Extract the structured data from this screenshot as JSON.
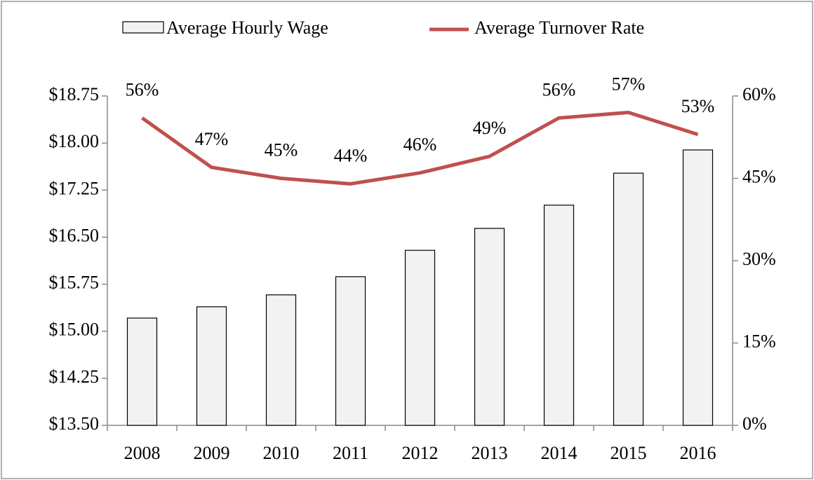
{
  "chart_data": {
    "type": "combo",
    "categories": [
      "2008",
      "2009",
      "2010",
      "2011",
      "2012",
      "2013",
      "2014",
      "2015",
      "2016"
    ],
    "series": [
      {
        "name": "Average Hourly Wage",
        "type": "bar",
        "color": "#f2f2f2",
        "values": [
          15.21,
          15.39,
          15.58,
          15.87,
          16.29,
          16.64,
          17.01,
          17.52,
          17.89
        ]
      },
      {
        "name": "Average Turnover Rate",
        "type": "line",
        "axis": "y2",
        "color": "#c0504d",
        "values": [
          56,
          47,
          45,
          44,
          46,
          49,
          56,
          57,
          53
        ],
        "value_labels": [
          "56%",
          "47%",
          "45%",
          "44%",
          "46%",
          "49%",
          "56%",
          "57%",
          "53%"
        ]
      }
    ],
    "ylim": [
      13.5,
      18.75
    ],
    "yticks": [
      {
        "value": 13.5,
        "label": "$13.50"
      },
      {
        "value": 14.25,
        "label": "$14.25"
      },
      {
        "value": 15,
        "label": "$15.00"
      },
      {
        "value": 15.75,
        "label": "$15.75"
      },
      {
        "value": 16.5,
        "label": "$16.50"
      },
      {
        "value": 17.25,
        "label": "$17.25"
      },
      {
        "value": 18,
        "label": "$18.00"
      },
      {
        "value": 18.75,
        "label": "$18.75"
      }
    ],
    "y2lim": [
      0,
      60
    ],
    "y2ticks": [
      {
        "value": 0,
        "label": "0%"
      },
      {
        "value": 15,
        "label": "15%"
      },
      {
        "value": 30,
        "label": "30%"
      },
      {
        "value": 45,
        "label": "45%"
      },
      {
        "value": 60,
        "label": "60%"
      }
    ],
    "legend": "top"
  }
}
